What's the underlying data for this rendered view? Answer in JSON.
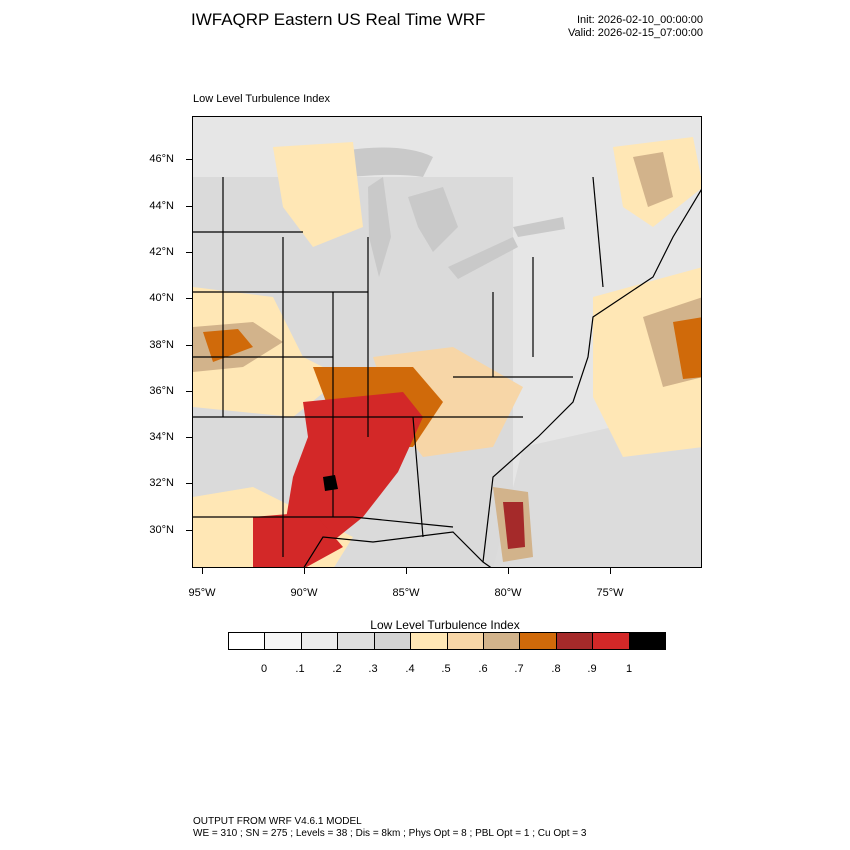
{
  "title": "IWFAQRP Eastern US Real Time WRF",
  "init_label": "Init: 2026-02-10_00:00:00",
  "valid_label": "Valid: 2026-02-15_07:00:00",
  "map_subtitle": "Low Level Turbulence Index",
  "lat_labels": [
    "46°N",
    "44°N",
    "42°N",
    "40°N",
    "38°N",
    "36°N",
    "34°N",
    "32°N",
    "30°N"
  ],
  "lon_labels": [
    "95°W",
    "90°W",
    "85°W",
    "80°W",
    "75°W"
  ],
  "colorbar": {
    "title": "Low Level Turbulence Index",
    "labels": [
      "0",
      ".1",
      ".2",
      ".3",
      ".4",
      ".5",
      ".6",
      ".7",
      ".8",
      ".9",
      "1"
    ],
    "colors": [
      "#ffffff",
      "#f6f6f6",
      "#ececec",
      "#dedede",
      "#d3d3d3",
      "#ffe7b5",
      "#f7d6a7",
      "#d2b38b",
      "#d06a0a",
      "#a52a2a",
      "#d32828",
      "#000000"
    ]
  },
  "footer": {
    "line1": "OUTPUT FROM WRF V4.6.1 MODEL",
    "line2": "WE = 310 ; SN = 275 ; Levels = 38 ; Dis = 8km ; Phys Opt = 8 ; PBL Opt = 1 ; Cu Opt = 3"
  }
}
